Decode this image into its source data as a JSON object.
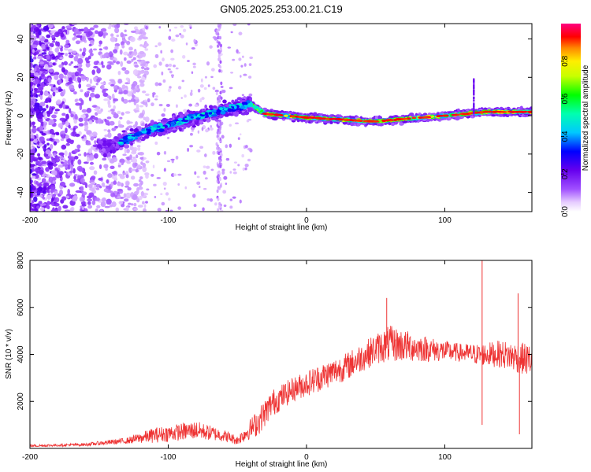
{
  "title": "GN05.2025.253.00.21.C19",
  "chart_data": [
    {
      "type": "heatmap",
      "xlabel": "Height of straight line (km)",
      "ylabel": "Frequency (Hz)",
      "xlim": [
        -200,
        163
      ],
      "ylim": [
        -50,
        48
      ],
      "xticks": [
        -200,
        -100,
        0,
        100
      ],
      "yticks": [
        -40,
        -20,
        0,
        20,
        40
      ],
      "colorbar": {
        "label": "Normalized spectral amplitude",
        "range": [
          0,
          1
        ],
        "ticks": [
          0.0,
          0.2,
          0.4,
          0.6,
          0.8
        ],
        "tick_labels": [
          "0.0",
          "0.2",
          "0.4",
          "0.6",
          "0.8"
        ],
        "colormap": "rainbow (white-violet-blue-cyan-green-yellow-red-magenta)"
      },
      "ridge": {
        "description": "dominant frequency track",
        "x": [
          -140,
          -120,
          -100,
          -80,
          -60,
          -40,
          -30,
          0,
          50,
          100,
          130,
          163
        ],
        "y": [
          -16,
          -9,
          -5,
          -1,
          3,
          6,
          1,
          -1,
          -3,
          0,
          2,
          2
        ]
      },
      "features": [
        {
          "x": -63,
          "y_range": [
            -50,
            48
          ],
          "note": "vertical faint streak"
        },
        {
          "x": 121,
          "y_range": [
            0,
            20
          ],
          "note": "short vertical spike"
        },
        {
          "x_range": [
            -200,
            -150
          ],
          "note": "noisy scattered region"
        }
      ]
    },
    {
      "type": "line",
      "xlabel": "Height of straight line (km)",
      "ylabel": "SNR (10 * v/v)",
      "xlim": [
        -200,
        163
      ],
      "ylim": [
        0,
        8000
      ],
      "xticks": [
        -200,
        -100,
        0,
        100
      ],
      "yticks": [
        2000,
        4000,
        6000,
        8000
      ],
      "color": "#ee3333",
      "envelope": {
        "x": [
          -200,
          -160,
          -130,
          -110,
          -80,
          -60,
          -50,
          -35,
          -25,
          -10,
          10,
          30,
          50,
          60,
          75,
          90,
          110,
          125,
          140,
          163
        ],
        "y": [
          100,
          150,
          300,
          500,
          700,
          500,
          300,
          1000,
          1800,
          2400,
          2900,
          3400,
          4100,
          4300,
          4200,
          4100,
          4000,
          3900,
          3900,
          3600
        ],
        "amplitude": [
          80,
          100,
          200,
          500,
          600,
          400,
          300,
          900,
          900,
          800,
          900,
          900,
          1000,
          1200,
          1000,
          800,
          600,
          700,
          900,
          1100
        ]
      },
      "spikes": [
        {
          "x": 127,
          "y": 8200
        },
        {
          "x": 127,
          "y": 1000
        },
        {
          "x": 153,
          "y": 6600
        },
        {
          "x": 154,
          "y": 600
        },
        {
          "x": 58,
          "y": 6400
        }
      ]
    }
  ]
}
